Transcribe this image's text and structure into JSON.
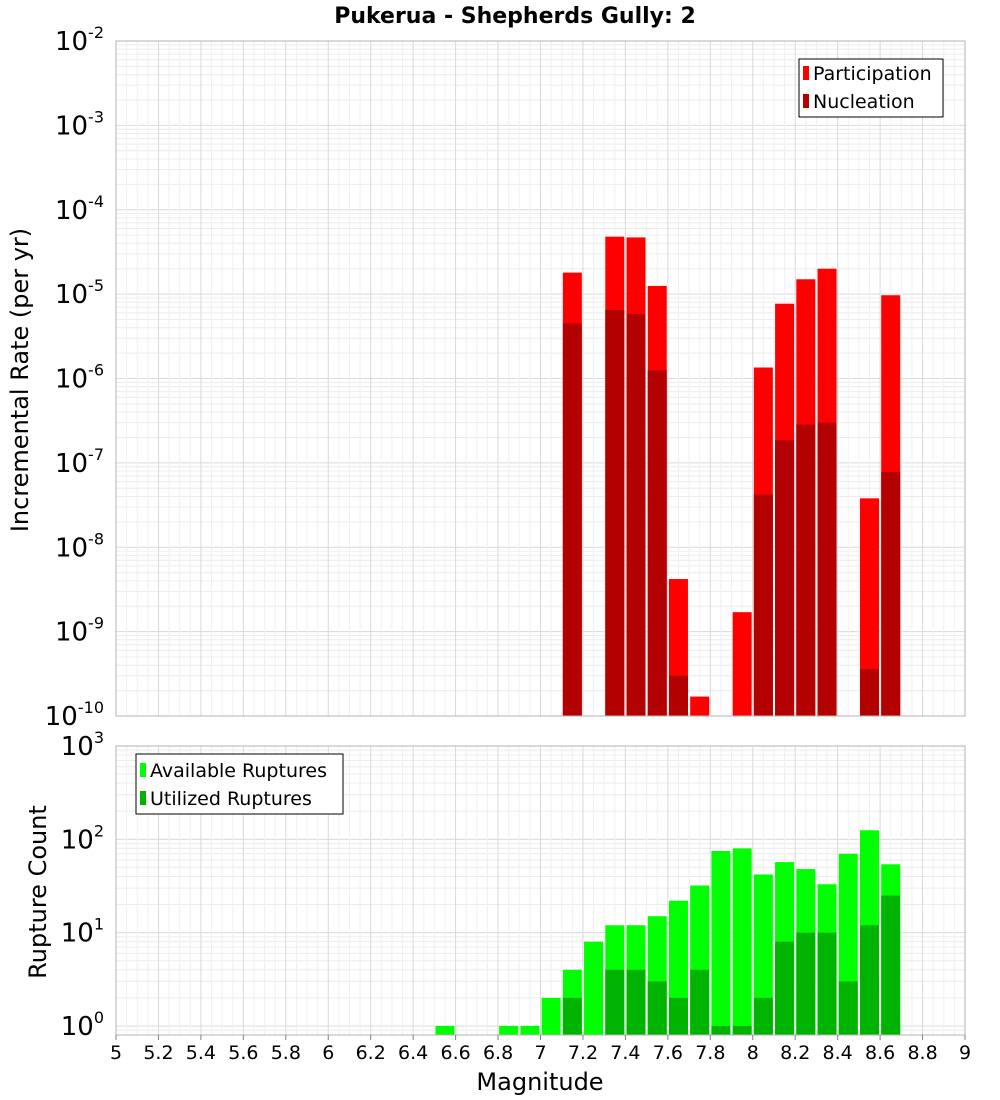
{
  "chart_data": [
    {
      "type": "bar",
      "title": "Pukerua - Shepherds Gully: 2",
      "ylabel": "Incremental Rate (per yr)",
      "xlabel": "",
      "ylog": true,
      "ylim": [
        1e-10,
        0.01
      ],
      "xlim": [
        5,
        9
      ],
      "yticks": [
        {
          "base": "10",
          "exp": "-2",
          "value": 0.01
        },
        {
          "base": "10",
          "exp": "-3",
          "value": 0.001
        },
        {
          "base": "10",
          "exp": "-4",
          "value": 0.0001
        },
        {
          "base": "10",
          "exp": "-5",
          "value": 1e-05
        },
        {
          "base": "10",
          "exp": "-6",
          "value": 1e-06
        },
        {
          "base": "10",
          "exp": "-7",
          "value": 1e-07
        },
        {
          "base": "10",
          "exp": "-8",
          "value": 1e-08
        },
        {
          "base": "10",
          "exp": "-9",
          "value": 1e-09
        },
        {
          "base": "10",
          "exp": "-10",
          "value": 1e-10
        }
      ],
      "grid": true,
      "legend_position": "top-right",
      "series": [
        {
          "name": "Participation",
          "color": "#ff0000",
          "x": [
            7.15,
            7.35,
            7.45,
            7.55,
            7.65,
            7.75,
            7.95,
            8.05,
            8.15,
            8.25,
            8.35,
            8.55,
            8.65
          ],
          "values": [
            1.8e-05,
            4.8e-05,
            4.7e-05,
            1.25e-05,
            4.2e-09,
            1.7e-10,
            1.7e-09,
            1.35e-06,
            7.7e-06,
            1.5e-05,
            2e-05,
            3.8e-08,
            9.7e-06
          ]
        },
        {
          "name": "Nucleation",
          "color": "#b30000",
          "x": [
            7.15,
            7.35,
            7.45,
            7.55,
            7.65,
            8.05,
            8.15,
            8.25,
            8.35,
            8.55,
            8.65
          ],
          "values": [
            4.5e-06,
            6.5e-06,
            5.8e-06,
            1.25e-06,
            3e-10,
            4.2e-08,
            1.85e-07,
            2.85e-07,
            3e-07,
            3.6e-10,
            7.8e-08
          ]
        }
      ]
    },
    {
      "type": "bar",
      "title": "",
      "ylabel": "Rupture Count",
      "xlabel": "Magnitude",
      "ylog": true,
      "ylim": [
        0.8,
        1000
      ],
      "xlim": [
        5,
        9
      ],
      "yticks": [
        {
          "base": "10",
          "exp": "3",
          "value": 1000
        },
        {
          "base": "10",
          "exp": "2",
          "value": 100
        },
        {
          "base": "10",
          "exp": "1",
          "value": 10
        },
        {
          "base": "10",
          "exp": "0",
          "value": 1
        }
      ],
      "xticks": [
        "5",
        "5.2",
        "5.4",
        "5.6",
        "5.8",
        "6",
        "6.2",
        "6.4",
        "6.6",
        "6.8",
        "7",
        "7.2",
        "7.4",
        "7.6",
        "7.8",
        "8",
        "8.2",
        "8.4",
        "8.6",
        "8.8",
        "9"
      ],
      "grid": true,
      "legend_position": "top-left",
      "series": [
        {
          "name": "Available Ruptures",
          "color": "#00ff00",
          "x": [
            6.55,
            6.85,
            6.95,
            7.05,
            7.15,
            7.25,
            7.35,
            7.45,
            7.55,
            7.65,
            7.75,
            7.85,
            7.95,
            8.05,
            8.15,
            8.25,
            8.35,
            8.45,
            8.55,
            8.65
          ],
          "values": [
            1,
            1,
            1,
            2,
            4,
            8,
            12,
            12,
            15,
            22,
            32,
            75,
            80,
            42,
            57,
            48,
            33,
            70,
            125,
            54
          ]
        },
        {
          "name": "Utilized Ruptures",
          "color": "#00b300",
          "x": [
            7.15,
            7.35,
            7.45,
            7.55,
            7.65,
            7.75,
            7.85,
            7.95,
            8.05,
            8.15,
            8.25,
            8.35,
            8.45,
            8.55,
            8.65
          ],
          "values": [
            2,
            4,
            4,
            3,
            2,
            4,
            1,
            1,
            2,
            8,
            10,
            10,
            3,
            12,
            25
          ]
        }
      ]
    }
  ]
}
